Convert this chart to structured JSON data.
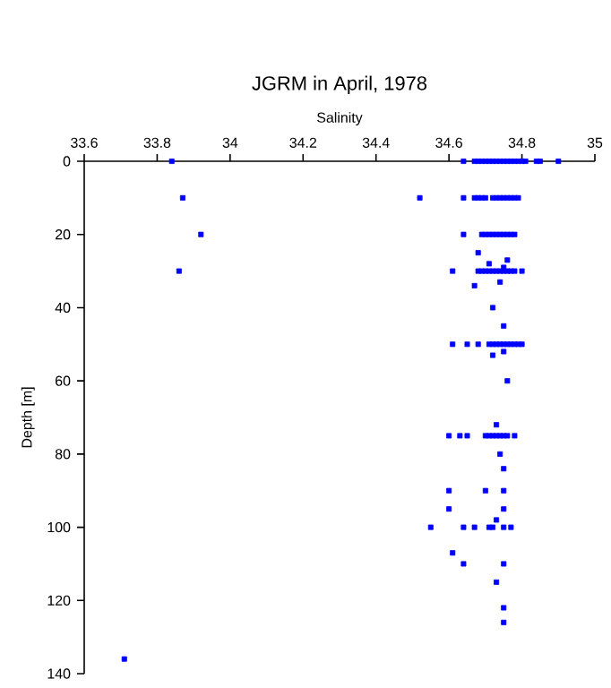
{
  "chart_data": {
    "type": "scatter",
    "title": "JGRM in April, 1978",
    "xlabel": "Salinity",
    "ylabel": "Depth [m]",
    "xlim": [
      33.6,
      35
    ],
    "ylim": [
      140,
      0
    ],
    "xticks": [
      33.6,
      33.8,
      34,
      34.2,
      34.4,
      34.6,
      34.8,
      35
    ],
    "yticks": [
      0,
      20,
      40,
      60,
      80,
      100,
      120,
      140
    ],
    "marker": "square",
    "grid": false,
    "series": [
      {
        "color": "#0000ff",
        "x": [
          33.84,
          34.64,
          34.67,
          34.68,
          34.69,
          34.7,
          34.71,
          34.72,
          34.73,
          34.74,
          34.75,
          34.76,
          34.77,
          34.78,
          34.79,
          34.8,
          34.81,
          34.84,
          34.85,
          34.9,
          33.87,
          34.52,
          34.64,
          34.67,
          34.68,
          34.69,
          34.7,
          34.72,
          34.73,
          34.74,
          34.75,
          34.76,
          34.77,
          34.78,
          34.79,
          33.92,
          34.64,
          34.69,
          34.7,
          34.71,
          34.72,
          34.73,
          34.74,
          34.75,
          34.76,
          34.77,
          34.78,
          34.68,
          34.76,
          34.71,
          34.75,
          33.86,
          34.61,
          34.68,
          34.69,
          34.7,
          34.71,
          34.72,
          34.73,
          34.74,
          34.75,
          34.76,
          34.77,
          34.78,
          34.8,
          34.74,
          34.67,
          34.72,
          34.75,
          34.61,
          34.65,
          34.68,
          34.71,
          34.72,
          34.73,
          34.74,
          34.75,
          34.76,
          34.77,
          34.78,
          34.79,
          34.8,
          34.75,
          34.72,
          34.76,
          34.73,
          34.6,
          34.63,
          34.65,
          34.7,
          34.71,
          34.72,
          34.73,
          34.74,
          34.75,
          34.76,
          34.78,
          34.74,
          34.75,
          34.6,
          34.7,
          34.75,
          34.6,
          34.75,
          34.73,
          34.55,
          34.64,
          34.67,
          34.71,
          34.72,
          34.75,
          34.77,
          34.61,
          34.64,
          34.75,
          34.73,
          34.75,
          34.75,
          33.71
        ],
        "values": [
          0,
          0,
          0,
          0,
          0,
          0,
          0,
          0,
          0,
          0,
          0,
          0,
          0,
          0,
          0,
          0,
          0,
          0,
          0,
          0,
          10,
          10,
          10,
          10,
          10,
          10,
          10,
          10,
          10,
          10,
          10,
          10,
          10,
          10,
          10,
          20,
          20,
          20,
          20,
          20,
          20,
          20,
          20,
          20,
          20,
          20,
          20,
          25,
          27,
          28,
          29,
          30,
          30,
          30,
          30,
          30,
          30,
          30,
          30,
          30,
          30,
          30,
          30,
          30,
          30,
          33,
          34,
          40,
          45,
          50,
          50,
          50,
          50,
          50,
          50,
          50,
          50,
          50,
          50,
          50,
          50,
          50,
          52,
          53,
          60,
          72,
          75,
          75,
          75,
          75,
          75,
          75,
          75,
          75,
          75,
          75,
          75,
          80,
          84,
          90,
          90,
          90,
          95,
          95,
          98,
          100,
          100,
          100,
          100,
          100,
          100,
          100,
          107,
          110,
          110,
          115,
          122,
          126,
          136
        ]
      }
    ]
  }
}
